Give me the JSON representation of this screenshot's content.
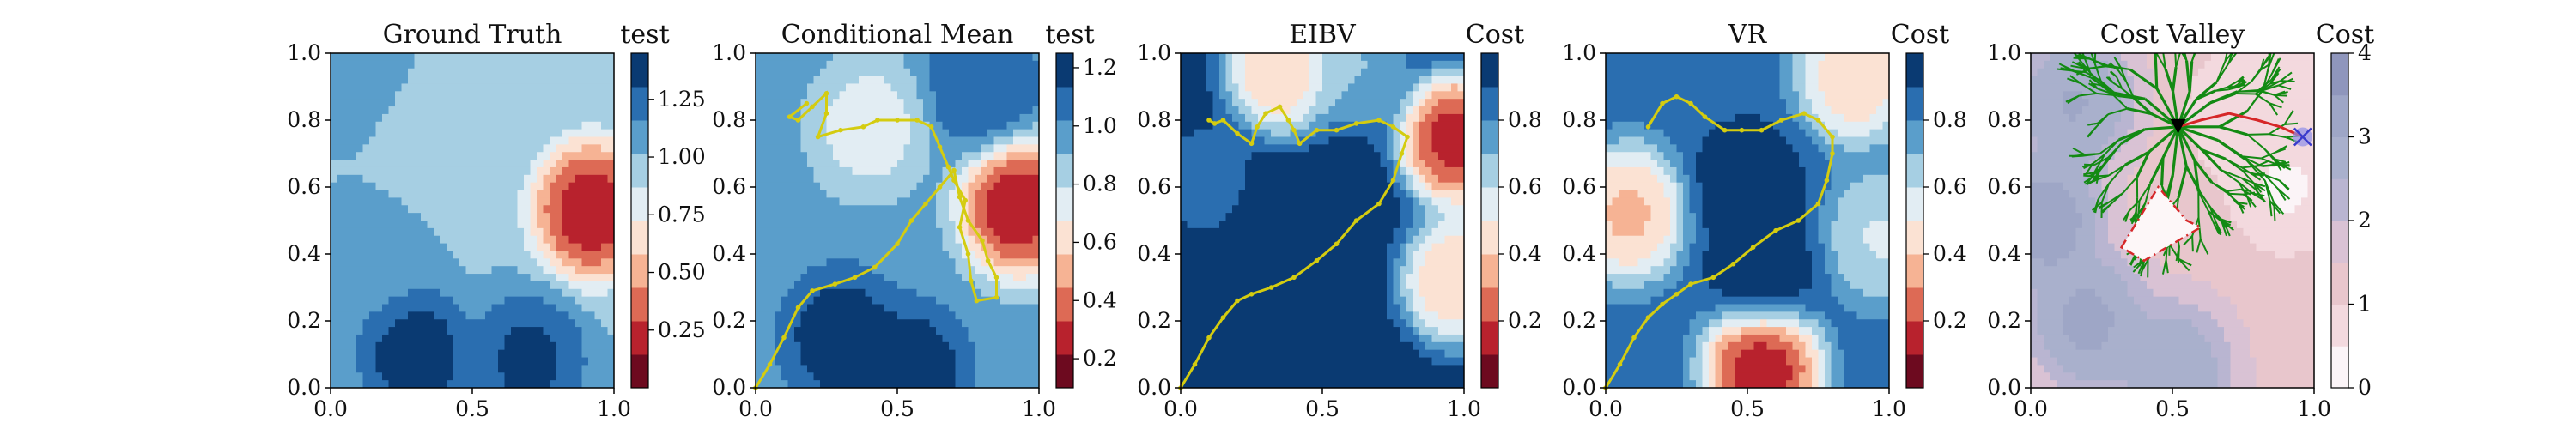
{
  "chart_data": [
    {
      "type": "heatmap",
      "title": "Ground Truth",
      "colorbar_label": "test",
      "colormap": "RdBu",
      "xlim": [
        0,
        1
      ],
      "ylim": [
        0,
        1
      ],
      "xticks": [
        "0.0",
        "0.5",
        "1.0"
      ],
      "yticks": [
        "0.0",
        "0.2",
        "0.4",
        "0.6",
        "0.8",
        "1.0"
      ],
      "colorbar_range": [
        0.0,
        1.45
      ],
      "colorbar_ticks": [
        "0.25",
        "0.50",
        "0.75",
        "1.00",
        "1.25"
      ],
      "colorbar_tick_values": [
        0.25,
        0.5,
        0.75,
        1.0,
        1.25
      ],
      "features": [
        {
          "x": 0.92,
          "y": 0.53,
          "value": 0.05
        },
        {
          "x": 0.35,
          "y": 0.75,
          "value": 0.85
        },
        {
          "x": 0.12,
          "y": 0.92,
          "value": 1.1
        },
        {
          "x": 0.55,
          "y": 0.95,
          "value": 0.95
        },
        {
          "x": 0.3,
          "y": 0.1,
          "value": 1.45
        },
        {
          "x": 0.7,
          "y": 0.08,
          "value": 1.4
        },
        {
          "x": 0.15,
          "y": 0.4,
          "value": 1.1
        }
      ],
      "base_value": 1.0
    },
    {
      "type": "heatmap",
      "title": "Conditional Mean",
      "colorbar_label": "test",
      "colormap": "RdBu",
      "xlim": [
        0,
        1
      ],
      "ylim": [
        0,
        1
      ],
      "xticks": [
        "0.0",
        "0.5",
        "1.0"
      ],
      "yticks": [
        "0.0",
        "0.2",
        "0.4",
        "0.6",
        "0.8",
        "1.0"
      ],
      "colorbar_range": [
        0.1,
        1.25
      ],
      "colorbar_ticks": [
        "0.2",
        "0.4",
        "0.6",
        "0.8",
        "1.0",
        "1.2"
      ],
      "colorbar_tick_values": [
        0.2,
        0.4,
        0.6,
        0.8,
        1.0,
        1.2
      ],
      "features": [
        {
          "x": 0.93,
          "y": 0.54,
          "value": 0.12
        },
        {
          "x": 0.4,
          "y": 0.78,
          "value": 0.7
        },
        {
          "x": 0.3,
          "y": 0.15,
          "value": 1.25
        },
        {
          "x": 0.55,
          "y": 0.05,
          "value": 1.25
        },
        {
          "x": 0.8,
          "y": 0.9,
          "value": 1.15
        }
      ],
      "base_value": 0.95,
      "path": [
        [
          0.0,
          0.0
        ],
        [
          0.05,
          0.07
        ],
        [
          0.1,
          0.15
        ],
        [
          0.15,
          0.24
        ],
        [
          0.2,
          0.29
        ],
        [
          0.28,
          0.31
        ],
        [
          0.35,
          0.33
        ],
        [
          0.42,
          0.36
        ],
        [
          0.5,
          0.43
        ],
        [
          0.55,
          0.5
        ],
        [
          0.6,
          0.55
        ],
        [
          0.65,
          0.6
        ],
        [
          0.7,
          0.65
        ],
        [
          0.72,
          0.57
        ],
        [
          0.75,
          0.5
        ],
        [
          0.8,
          0.44
        ],
        [
          0.82,
          0.38
        ],
        [
          0.85,
          0.33
        ],
        [
          0.85,
          0.27
        ],
        [
          0.78,
          0.26
        ],
        [
          0.76,
          0.32
        ],
        [
          0.75,
          0.4
        ],
        [
          0.72,
          0.48
        ],
        [
          0.74,
          0.56
        ],
        [
          0.7,
          0.62
        ],
        [
          0.68,
          0.66
        ],
        [
          0.65,
          0.72
        ],
        [
          0.62,
          0.78
        ],
        [
          0.57,
          0.8
        ],
        [
          0.5,
          0.8
        ],
        [
          0.43,
          0.8
        ],
        [
          0.38,
          0.78
        ],
        [
          0.3,
          0.77
        ],
        [
          0.22,
          0.75
        ],
        [
          0.25,
          0.82
        ],
        [
          0.25,
          0.88
        ],
        [
          0.2,
          0.84
        ],
        [
          0.15,
          0.8
        ],
        [
          0.12,
          0.81
        ],
        [
          0.18,
          0.85
        ]
      ]
    },
    {
      "type": "heatmap",
      "title": "EIBV",
      "colorbar_label": "Cost",
      "colormap": "RdBu",
      "xlim": [
        0,
        1
      ],
      "ylim": [
        0,
        1
      ],
      "xticks": [
        "0.0",
        "0.5",
        "1.0"
      ],
      "yticks": [
        "0.0",
        "0.2",
        "0.4",
        "0.6",
        "0.8",
        "1.0"
      ],
      "colorbar_range": [
        0.0,
        1.0
      ],
      "colorbar_ticks": [
        "0.2",
        "0.4",
        "0.6",
        "0.8"
      ],
      "colorbar_tick_values": [
        0.2,
        0.4,
        0.6,
        0.8
      ],
      "features": [
        {
          "x": 0.97,
          "y": 0.74,
          "value": 0.0
        },
        {
          "x": 0.35,
          "y": 0.95,
          "value": 0.3
        },
        {
          "x": 0.62,
          "y": 0.97,
          "value": 0.65
        },
        {
          "x": 0.97,
          "y": 0.32,
          "value": 0.3
        },
        {
          "x": 0.08,
          "y": 0.62,
          "value": 0.85
        }
      ],
      "base_value": 1.0,
      "path": [
        [
          0.0,
          0.0
        ],
        [
          0.05,
          0.07
        ],
        [
          0.1,
          0.15
        ],
        [
          0.15,
          0.21
        ],
        [
          0.2,
          0.26
        ],
        [
          0.25,
          0.28
        ],
        [
          0.32,
          0.3
        ],
        [
          0.4,
          0.33
        ],
        [
          0.48,
          0.38
        ],
        [
          0.55,
          0.43
        ],
        [
          0.62,
          0.5
        ],
        [
          0.7,
          0.55
        ],
        [
          0.75,
          0.62
        ],
        [
          0.78,
          0.7
        ],
        [
          0.8,
          0.75
        ],
        [
          0.75,
          0.78
        ],
        [
          0.7,
          0.8
        ],
        [
          0.62,
          0.79
        ],
        [
          0.55,
          0.77
        ],
        [
          0.48,
          0.77
        ],
        [
          0.42,
          0.73
        ],
        [
          0.4,
          0.77
        ],
        [
          0.38,
          0.8
        ],
        [
          0.35,
          0.84
        ],
        [
          0.3,
          0.82
        ],
        [
          0.27,
          0.78
        ],
        [
          0.25,
          0.73
        ],
        [
          0.2,
          0.76
        ],
        [
          0.15,
          0.8
        ],
        [
          0.12,
          0.79
        ],
        [
          0.1,
          0.8
        ]
      ]
    },
    {
      "type": "heatmap",
      "title": "VR",
      "colorbar_label": "Cost",
      "colormap": "RdBu",
      "xlim": [
        0,
        1
      ],
      "ylim": [
        0,
        1
      ],
      "xticks": [
        "0.0",
        "0.5",
        "1.0"
      ],
      "yticks": [
        "0.0",
        "0.2",
        "0.4",
        "0.6",
        "0.8",
        "1.0"
      ],
      "colorbar_range": [
        0.0,
        1.0
      ],
      "colorbar_ticks": [
        "0.2",
        "0.4",
        "0.6",
        "0.8"
      ],
      "colorbar_tick_values": [
        0.2,
        0.4,
        0.6,
        0.8
      ],
      "features": [
        {
          "x": 0.55,
          "y": 0.06,
          "value": 0.0
        },
        {
          "x": 0.08,
          "y": 0.52,
          "value": 0.3
        },
        {
          "x": 0.88,
          "y": 0.93,
          "value": 0.35
        },
        {
          "x": 0.97,
          "y": 0.45,
          "value": 0.55
        },
        {
          "x": 0.5,
          "y": 0.6,
          "value": 1.0
        },
        {
          "x": 0.55,
          "y": 0.35,
          "value": 1.0
        }
      ],
      "base_value": 0.85,
      "path": [
        [
          0.0,
          0.0
        ],
        [
          0.05,
          0.07
        ],
        [
          0.1,
          0.15
        ],
        [
          0.15,
          0.21
        ],
        [
          0.2,
          0.25
        ],
        [
          0.25,
          0.28
        ],
        [
          0.3,
          0.31
        ],
        [
          0.38,
          0.33
        ],
        [
          0.45,
          0.37
        ],
        [
          0.52,
          0.42
        ],
        [
          0.6,
          0.47
        ],
        [
          0.68,
          0.5
        ],
        [
          0.75,
          0.55
        ],
        [
          0.78,
          0.62
        ],
        [
          0.8,
          0.7
        ],
        [
          0.8,
          0.75
        ],
        [
          0.75,
          0.8
        ],
        [
          0.7,
          0.82
        ],
        [
          0.62,
          0.8
        ],
        [
          0.55,
          0.77
        ],
        [
          0.48,
          0.77
        ],
        [
          0.42,
          0.77
        ],
        [
          0.35,
          0.81
        ],
        [
          0.3,
          0.85
        ],
        [
          0.25,
          0.87
        ],
        [
          0.2,
          0.85
        ],
        [
          0.15,
          0.78
        ]
      ]
    },
    {
      "type": "heatmap",
      "title": "Cost Valley",
      "colorbar_label": "Cost",
      "colormap": "Reds-lavender",
      "xlim": [
        0,
        1
      ],
      "ylim": [
        0,
        1
      ],
      "xticks": [
        "0.0",
        "0.5",
        "1.0"
      ],
      "yticks": [
        "0.0",
        "0.2",
        "0.4",
        "0.6",
        "0.8",
        "1.0"
      ],
      "colorbar_range": [
        0,
        4
      ],
      "colorbar_ticks": [
        "0",
        "1",
        "2",
        "3",
        "4"
      ],
      "colorbar_tick_values": [
        0,
        1,
        2,
        3,
        4
      ],
      "features": [
        {
          "x": 0.05,
          "y": 0.5,
          "value": 3.6
        },
        {
          "x": 0.2,
          "y": 0.2,
          "value": 3.4
        },
        {
          "x": 0.5,
          "y": 0.05,
          "value": 3.2
        },
        {
          "x": 0.15,
          "y": 0.85,
          "value": 3.3
        },
        {
          "x": 0.75,
          "y": 0.82,
          "value": 0.4
        },
        {
          "x": 0.9,
          "y": 0.6,
          "value": 0.3
        },
        {
          "x": 0.95,
          "y": 0.9,
          "value": 0.6
        }
      ],
      "base_value": 1.4,
      "origin": [
        0.52,
        0.78
      ],
      "target": [
        0.96,
        0.75
      ],
      "route": [
        [
          0.52,
          0.78
        ],
        [
          0.6,
          0.8
        ],
        [
          0.7,
          0.82
        ],
        [
          0.8,
          0.8
        ],
        [
          0.88,
          0.78
        ],
        [
          0.96,
          0.75
        ]
      ],
      "obstacle": [
        [
          0.32,
          0.42
        ],
        [
          0.45,
          0.6
        ],
        [
          0.55,
          0.5
        ],
        [
          0.6,
          0.48
        ],
        [
          0.4,
          0.38
        ],
        [
          0.32,
          0.42
        ]
      ],
      "tree_colors": {
        "tree": "#138a13",
        "route": "#d62728",
        "obstacle": "#d62728",
        "origin": "#000000",
        "target": "#3a3acc"
      }
    }
  ]
}
